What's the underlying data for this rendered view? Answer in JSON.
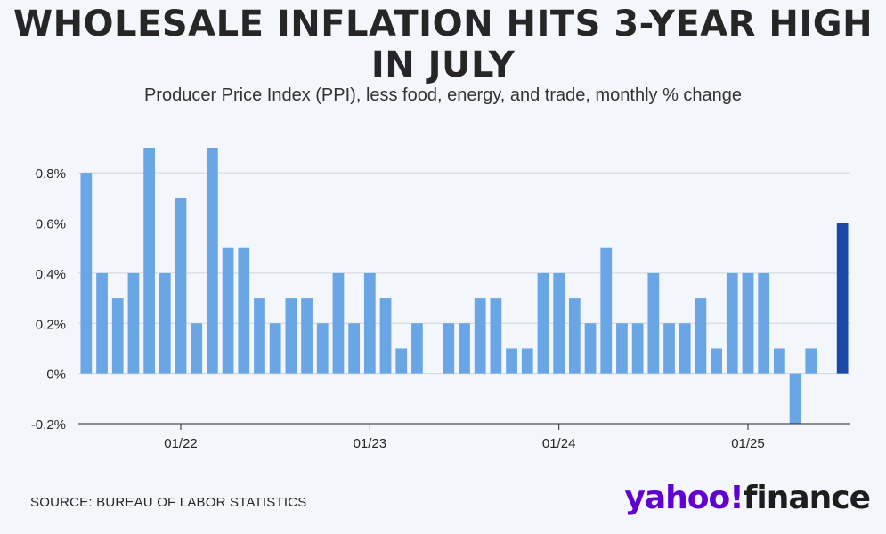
{
  "header": {
    "title": "WHOLESALE INFLATION HITS 3-YEAR HIGH IN JULY",
    "subtitle": "Producer Price Index (PPI), less food, energy, and trade, monthly % change"
  },
  "footer": {
    "source": "SOURCE: BUREAU OF LABOR STATISTICS",
    "logo_yahoo": "yahoo!",
    "logo_finance": "finance"
  },
  "colors": {
    "bar": "#6aa6e6",
    "bar_highlight": "#1a49a8",
    "axis": "#262626",
    "grid": "#cfd6de",
    "logo_accent": "#6001d2"
  },
  "chart_data": {
    "type": "bar",
    "ylim": [
      -0.2,
      0.9
    ],
    "yticks": [
      "0.8%",
      "0.6%",
      "0.4%",
      "0.2%",
      "0%",
      "-0.2%"
    ],
    "ytick_values": [
      0.8,
      0.6,
      0.4,
      0.2,
      0,
      -0.2
    ],
    "xtick_labels": [
      "01/22",
      "01/23",
      "01/24",
      "01/25"
    ],
    "xtick_indices": [
      6,
      18,
      30,
      42
    ],
    "grid": "horizontal",
    "values": [
      0.8,
      0.4,
      0.3,
      0.4,
      0.9,
      0.4,
      0.7,
      0.2,
      0.9,
      0.5,
      0.5,
      0.3,
      0.2,
      0.3,
      0.3,
      0.2,
      0.4,
      0.2,
      0.4,
      0.3,
      0.1,
      0.2,
      0.0,
      0.2,
      0.2,
      0.3,
      0.3,
      0.1,
      0.1,
      0.4,
      0.4,
      0.3,
      0.2,
      0.5,
      0.2,
      0.2,
      0.4,
      0.2,
      0.2,
      0.3,
      0.1,
      0.4,
      0.4,
      0.4,
      0.1,
      -0.2,
      0.1,
      0.0,
      0.6
    ],
    "highlight_index": 48
  }
}
